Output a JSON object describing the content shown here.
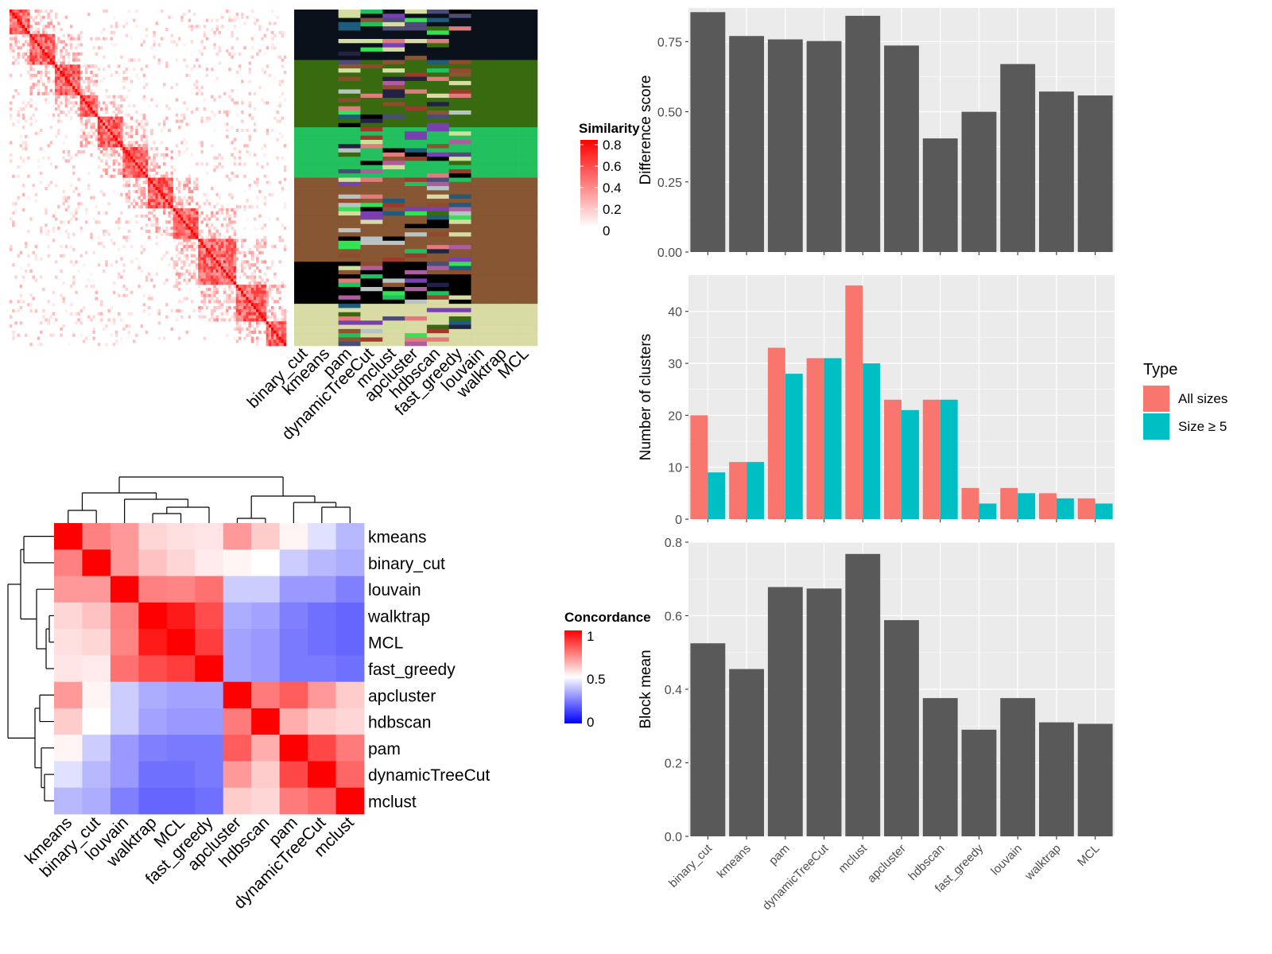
{
  "colors": {
    "panel_bg": "#ebebeb",
    "grid_major": "#ffffff",
    "bar_fill": "#595959",
    "all_sizes": "#f8766d",
    "size_ge5": "#00bfc4",
    "sim_high": "#ff0000",
    "conc_high": "#ff0000",
    "conc_mid": "#ffffff",
    "conc_low": "#0000ff"
  },
  "chart_data": [
    {
      "id": "similarity_heatmap",
      "type": "heatmap",
      "legend_title": "Similarity",
      "legend_ticks": [
        "0.8",
        "0.6",
        "0.4",
        "0.2",
        "0"
      ],
      "method_columns": [
        "binary_cut",
        "kmeans",
        "pam",
        "dynamicTreeCut",
        "mclust",
        "apcluster",
        "hdbscan",
        "fast_greedy",
        "louvain",
        "walktrap",
        "MCL"
      ]
    },
    {
      "id": "concordance_heatmap",
      "type": "heatmap",
      "legend_title": "Concordance",
      "legend_ticks": [
        "1",
        "0.5",
        "0"
      ],
      "rows": [
        "kmeans",
        "binary_cut",
        "louvain",
        "walktrap",
        "MCL",
        "fast_greedy",
        "apcluster",
        "hdbscan",
        "pam",
        "dynamicTreeCut",
        "mclust"
      ],
      "columns": [
        "kmeans",
        "binary_cut",
        "louvain",
        "walktrap",
        "MCL",
        "fast_greedy",
        "apcluster",
        "hdbscan",
        "pam",
        "dynamicTreeCut",
        "mclust"
      ],
      "values": [
        [
          1.0,
          0.75,
          0.7,
          0.58,
          0.56,
          0.55,
          0.7,
          0.6,
          0.52,
          0.44,
          0.36
        ],
        [
          0.75,
          1.0,
          0.7,
          0.62,
          0.58,
          0.54,
          0.52,
          0.5,
          0.4,
          0.36,
          0.34
        ],
        [
          0.7,
          0.7,
          1.0,
          0.75,
          0.74,
          0.78,
          0.4,
          0.4,
          0.3,
          0.3,
          0.25
        ],
        [
          0.58,
          0.62,
          0.75,
          1.0,
          0.95,
          0.85,
          0.34,
          0.32,
          0.25,
          0.22,
          0.2
        ],
        [
          0.56,
          0.58,
          0.74,
          0.95,
          1.0,
          0.88,
          0.32,
          0.3,
          0.24,
          0.22,
          0.2
        ],
        [
          0.55,
          0.54,
          0.78,
          0.85,
          0.88,
          1.0,
          0.32,
          0.3,
          0.24,
          0.24,
          0.22
        ],
        [
          0.7,
          0.52,
          0.4,
          0.34,
          0.32,
          0.32,
          1.0,
          0.76,
          0.82,
          0.7,
          0.6
        ],
        [
          0.6,
          0.5,
          0.4,
          0.32,
          0.3,
          0.3,
          0.76,
          1.0,
          0.66,
          0.6,
          0.58
        ],
        [
          0.52,
          0.4,
          0.3,
          0.25,
          0.24,
          0.24,
          0.82,
          0.66,
          1.0,
          0.86,
          0.76
        ],
        [
          0.44,
          0.36,
          0.3,
          0.22,
          0.22,
          0.24,
          0.7,
          0.6,
          0.86,
          1.0,
          0.8
        ],
        [
          0.36,
          0.34,
          0.25,
          0.2,
          0.2,
          0.22,
          0.6,
          0.58,
          0.76,
          0.8,
          1.0
        ]
      ]
    },
    {
      "id": "difference_score",
      "type": "bar",
      "categories": [
        "binary_cut",
        "kmeans",
        "pam",
        "dynamicTreeCut",
        "mclust",
        "apcluster",
        "hdbscan",
        "fast_greedy",
        "louvain",
        "walktrap",
        "MCL"
      ],
      "values": [
        0.855,
        0.77,
        0.758,
        0.752,
        0.842,
        0.736,
        0.405,
        0.5,
        0.67,
        0.572,
        0.558
      ],
      "ylabel": "Difference score",
      "ylim": [
        0,
        0.87
      ],
      "yticks": [
        "0.00",
        "0.25",
        "0.50",
        "0.75"
      ],
      "grid": true
    },
    {
      "id": "number_of_clusters",
      "type": "bar",
      "categories": [
        "binary_cut",
        "kmeans",
        "pam",
        "dynamicTreeCut",
        "mclust",
        "apcluster",
        "hdbscan",
        "fast_greedy",
        "louvain",
        "walktrap",
        "MCL"
      ],
      "series": [
        {
          "name": "All sizes",
          "values": [
            20,
            11,
            33,
            31,
            45,
            23,
            23,
            6,
            6,
            5,
            4
          ]
        },
        {
          "name": "Size ≥ 5",
          "values": [
            9,
            11,
            28,
            31,
            30,
            21,
            23,
            3,
            5,
            4,
            3
          ]
        }
      ],
      "ylabel": "Number of clusters",
      "ylim": [
        0,
        47
      ],
      "yticks": [
        "0",
        "10",
        "20",
        "30",
        "40"
      ],
      "legend_title": "Type",
      "legend_position": "right",
      "grid": true
    },
    {
      "id": "block_mean",
      "type": "bar",
      "categories": [
        "binary_cut",
        "kmeans",
        "pam",
        "dynamicTreeCut",
        "mclust",
        "apcluster",
        "hdbscan",
        "fast_greedy",
        "louvain",
        "walktrap",
        "MCL"
      ],
      "values": [
        0.525,
        0.455,
        0.678,
        0.674,
        0.768,
        0.588,
        0.376,
        0.29,
        0.376,
        0.31,
        0.306
      ],
      "ylabel": "Block mean",
      "ylim": [
        0,
        0.8
      ],
      "yticks": [
        "0.0",
        "0.2",
        "0.4",
        "0.6",
        "0.8"
      ],
      "grid": true
    }
  ]
}
